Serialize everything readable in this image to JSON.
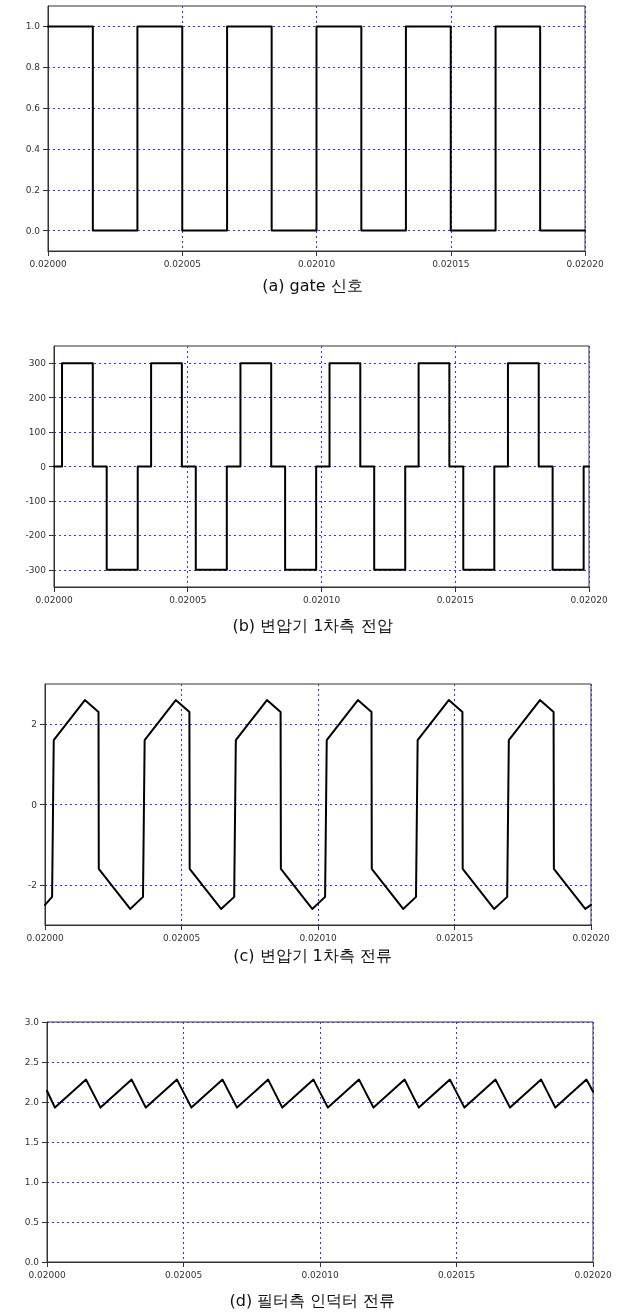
{
  "chart_data": [
    {
      "type": "step",
      "title": "(a) gate 신호",
      "xlim": [
        0.02,
        0.0202
      ],
      "ylim": [
        -0.1,
        1.1
      ],
      "grid": true,
      "marker": "none",
      "line_style": "solid",
      "xticks": [
        {
          "value": 0.02,
          "label": "0.02000"
        },
        {
          "value": 0.02005,
          "label": "0.02005"
        },
        {
          "value": 0.0201,
          "label": "0.02010"
        },
        {
          "value": 0.02015,
          "label": "0.02015"
        },
        {
          "value": 0.0202,
          "label": "0.02020"
        }
      ],
      "yticks": [
        {
          "value": 0,
          "label": "0.0"
        },
        0.2,
        0.4,
        0.6,
        0.8,
        {
          "value": 1,
          "label": "1.0"
        }
      ],
      "x": [
        0.02,
        0.0200167,
        0.0200333,
        0.02005,
        0.0200667,
        0.0200833,
        0.0201,
        0.0201167,
        0.0201333,
        0.02015,
        0.0201667,
        0.0201833,
        0.0202
      ],
      "series": [
        {
          "color": "#000000",
          "values": [
            1,
            0,
            1,
            0,
            1,
            0,
            1,
            0,
            1,
            0,
            1,
            0,
            0
          ]
        }
      ]
    },
    {
      "type": "step",
      "title": "(b) 변압기 1차측 전압",
      "xlim": [
        0.02,
        0.0202
      ],
      "ylim": [
        -350,
        350
      ],
      "grid": true,
      "marker": "none",
      "line_style": "solid",
      "xticks": [
        {
          "value": 0.02,
          "label": "0.02000"
        },
        {
          "value": 0.02005,
          "label": "0.02005"
        },
        {
          "value": 0.0201,
          "label": "0.02010"
        },
        {
          "value": 0.02015,
          "label": "0.02015"
        },
        {
          "value": 0.0202,
          "label": "0.02020"
        }
      ],
      "yticks": [
        -300,
        -200,
        -100,
        0,
        100,
        200,
        300
      ],
      "x": [
        0.02,
        0.020003,
        0.0200145,
        0.0200197,
        0.0200313,
        0.0200363,
        0.0200478,
        0.020053,
        0.0200646,
        0.0200697,
        0.0200812,
        0.0200864,
        0.020098,
        0.020103,
        0.0201145,
        0.0201197,
        0.0201313,
        0.0201363,
        0.0201478,
        0.020153,
        0.0201646,
        0.0201697,
        0.0201812,
        0.0201864,
        0.020198,
        0.0202
      ],
      "series": [
        {
          "color": "#000000",
          "values": [
            0,
            300,
            0,
            -300,
            0,
            300,
            0,
            -300,
            0,
            300,
            0,
            -300,
            0,
            300,
            0,
            -300,
            0,
            300,
            0,
            -300,
            0,
            300,
            0,
            -300,
            0,
            0
          ]
        }
      ]
    },
    {
      "type": "line",
      "title": "(c) 변압기 1차측 전류",
      "xlim": [
        0.02,
        0.0202
      ],
      "ylim": [
        -3,
        3
      ],
      "grid": true,
      "marker": "none",
      "line_style": "solid",
      "xticks": [
        {
          "value": 0.02,
          "label": "0.02000"
        },
        {
          "value": 0.02005,
          "label": "0.02005"
        },
        {
          "value": 0.0201,
          "label": "0.02010"
        },
        {
          "value": 0.02015,
          "label": "0.02015"
        },
        {
          "value": 0.0202,
          "label": "0.02020"
        }
      ],
      "yticks": [
        -2,
        0,
        2
      ],
      "x": [
        0.02,
        0.0200026,
        0.0200032,
        0.0200146,
        0.0200196,
        0.0200197,
        0.0200312,
        0.0200359,
        0.0200365,
        0.0200479,
        0.0200529,
        0.020053,
        0.0200645,
        0.0200693,
        0.0200699,
        0.0200813,
        0.0200863,
        0.0200864,
        0.0200979,
        0.0201026,
        0.0201032,
        0.0201146,
        0.0201196,
        0.0201197,
        0.0201312,
        0.0201359,
        0.0201365,
        0.0201479,
        0.0201529,
        0.020153,
        0.0201645,
        0.0201693,
        0.0201699,
        0.0201813,
        0.0201863,
        0.0201864,
        0.0201979,
        0.0202
      ],
      "series": [
        {
          "color": "#000000",
          "values": [
            -2.5,
            -2.3,
            1.6,
            2.6,
            2.3,
            -1.6,
            -2.6,
            -2.3,
            1.6,
            2.6,
            2.3,
            -1.6,
            -2.6,
            -2.3,
            1.6,
            2.6,
            2.3,
            -1.6,
            -2.6,
            -2.3,
            1.6,
            2.6,
            2.3,
            -1.6,
            -2.6,
            -2.3,
            1.6,
            2.6,
            2.3,
            -1.6,
            -2.6,
            -2.3,
            1.6,
            2.6,
            2.3,
            -1.6,
            -2.6,
            -2.5
          ]
        }
      ]
    },
    {
      "type": "line",
      "title": "(d) 필터측 인덕터 전류",
      "xlim": [
        0.02,
        0.0202
      ],
      "ylim": [
        0,
        3
      ],
      "grid": true,
      "marker": "none",
      "line_style": "solid",
      "xticks": [
        {
          "value": 0.02,
          "label": "0.02000"
        },
        {
          "value": 0.02005,
          "label": "0.02005"
        },
        {
          "value": 0.0201,
          "label": "0.02010"
        },
        {
          "value": 0.02015,
          "label": "0.02015"
        },
        {
          "value": 0.0202,
          "label": "0.02020"
        }
      ],
      "yticks": [
        {
          "value": 0,
          "label": "0.0"
        },
        0.5,
        {
          "value": 1,
          "label": "1.0"
        },
        1.5,
        {
          "value": 2,
          "label": "2.0"
        },
        2.5,
        {
          "value": 3,
          "label": "3.0"
        }
      ],
      "x": [
        0.02,
        0.0200029,
        0.0200143,
        0.0200196,
        0.020031,
        0.0200362,
        0.0200476,
        0.0200529,
        0.0200643,
        0.0200696,
        0.020081,
        0.0200862,
        0.0200976,
        0.0201029,
        0.0201143,
        0.0201196,
        0.020131,
        0.0201362,
        0.0201476,
        0.0201529,
        0.0201643,
        0.0201696,
        0.020181,
        0.0201862,
        0.0201976,
        0.0202
      ],
      "series": [
        {
          "color": "#000000",
          "values": [
            2.14,
            1.93,
            2.28,
            1.93,
            2.28,
            1.93,
            2.28,
            1.93,
            2.28,
            1.93,
            2.28,
            1.93,
            2.28,
            1.93,
            2.28,
            1.93,
            2.28,
            1.93,
            2.28,
            1.93,
            2.28,
            1.93,
            2.28,
            1.93,
            2.28,
            2.13
          ]
        }
      ]
    }
  ]
}
